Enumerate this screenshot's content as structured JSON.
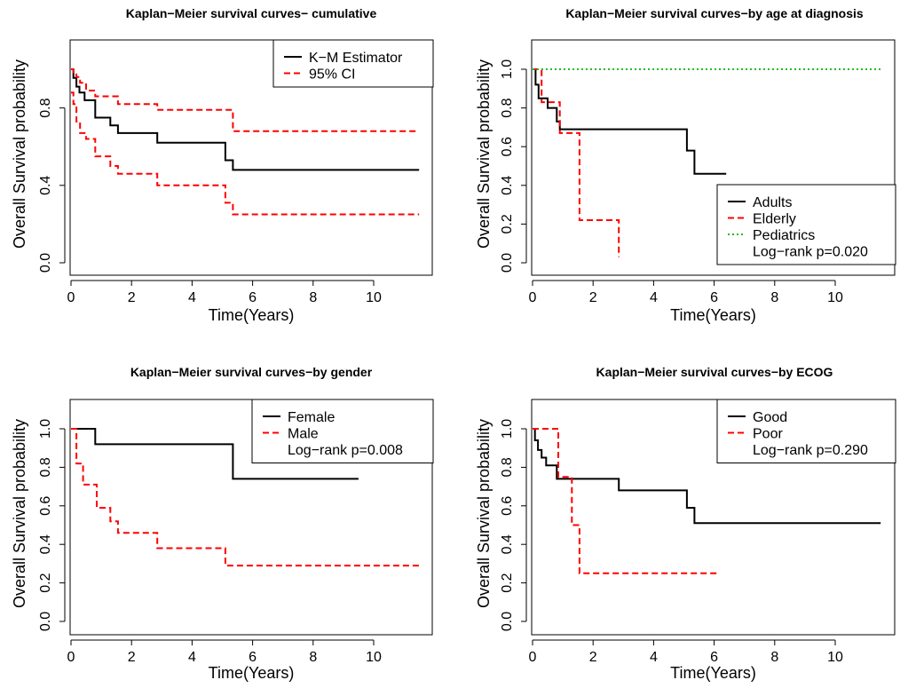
{
  "chart_data": [
    {
      "type": "line",
      "title": "Kaplan−Meier survival curves− cumulative",
      "xlabel": "Time(Years)",
      "ylabel": "Overall Survival probability",
      "xlim": [
        0,
        11.5
      ],
      "ylim": [
        0,
        1
      ],
      "xticks": [
        "0",
        "2",
        "4",
        "6",
        "8",
        "10"
      ],
      "yticks": [
        "0.0",
        "0.4",
        "0.8"
      ],
      "ytick_values": [
        0,
        0.4,
        0.8
      ],
      "legend_position": "top-right",
      "log_rank": "",
      "grid": false,
      "series": [
        {
          "name": "K−M Estimator",
          "color": "#000000",
          "dash": "solid",
          "x": [
            0,
            0.08,
            0.18,
            0.28,
            0.45,
            0.8,
            1.3,
            1.55,
            2.85,
            5.1,
            5.35,
            11.5
          ],
          "y": [
            1.0,
            0.955,
            0.91,
            0.88,
            0.84,
            0.75,
            0.71,
            0.67,
            0.62,
            0.53,
            0.48,
            0.48
          ]
        },
        {
          "name": "95%   CI",
          "color": "#ff0000",
          "dash": "dashed",
          "x": [
            0,
            0.08,
            0.18,
            0.3,
            0.5,
            0.8,
            1.55,
            2.85,
            5.1,
            5.35,
            11.5
          ],
          "y": [
            1.0,
            0.98,
            0.96,
            0.93,
            0.89,
            0.86,
            0.82,
            0.79,
            0.79,
            0.68,
            0.68
          ]
        },
        {
          "name": "",
          "color": "#ff0000",
          "dash": "dashed",
          "x": [
            0,
            0.08,
            0.18,
            0.3,
            0.5,
            0.8,
            1.3,
            1.55,
            2.85,
            5.1,
            5.35,
            11.5
          ],
          "y": [
            0.88,
            0.82,
            0.73,
            0.67,
            0.64,
            0.55,
            0.5,
            0.46,
            0.4,
            0.31,
            0.25,
            0.25
          ]
        }
      ]
    },
    {
      "type": "line",
      "title": "Kaplan−Meier survival curves−by age at diagnosis",
      "xlabel": "Time(Years)",
      "ylabel": "Overall Survival probability",
      "xlim": [
        0,
        11.5
      ],
      "ylim": [
        0,
        1
      ],
      "xticks": [
        "0",
        "2",
        "4",
        "6",
        "8",
        "10"
      ],
      "yticks": [
        "0.0",
        "0.2",
        "0.4",
        "0.6",
        "0.8",
        "1.0"
      ],
      "ytick_values": [
        0,
        0.2,
        0.4,
        0.6,
        0.8,
        1.0
      ],
      "legend_position": "bottom-right",
      "log_rank": "Log−rank p=0.020",
      "grid": false,
      "series": [
        {
          "name": "Adults",
          "color": "#000000",
          "dash": "solid",
          "x": [
            0,
            0.1,
            0.2,
            0.35,
            0.5,
            0.8,
            0.9,
            5.1,
            5.35,
            6.4
          ],
          "y": [
            1.0,
            0.92,
            0.85,
            0.85,
            0.8,
            0.73,
            0.69,
            0.58,
            0.46,
            0.46
          ]
        },
        {
          "name": "Elderly",
          "color": "#ff0000",
          "dash": "dashed",
          "x": [
            0,
            0.3,
            0.8,
            0.9,
            1.3,
            1.55,
            2.85,
            2.85
          ],
          "y": [
            1.0,
            0.83,
            0.83,
            0.67,
            0.67,
            0.22,
            0.22,
            0.03
          ]
        },
        {
          "name": "Pediatrics",
          "color": "#22bb22",
          "dash": "dotted",
          "x": [
            0,
            11.5
          ],
          "y": [
            1.0,
            1.0
          ]
        }
      ]
    },
    {
      "type": "line",
      "title": "Kaplan−Meier survival curves−by gender",
      "xlabel": "Time(Years)",
      "ylabel": "Overall Survival probability",
      "xlim": [
        0,
        11.5
      ],
      "ylim": [
        0,
        1
      ],
      "xticks": [
        "0",
        "2",
        "4",
        "6",
        "8",
        "10"
      ],
      "yticks": [
        "0.0",
        "0.2",
        "0.4",
        "0.6",
        "0.8",
        "1.0"
      ],
      "ytick_values": [
        0,
        0.2,
        0.4,
        0.6,
        0.8,
        1.0
      ],
      "legend_position": "top-right",
      "log_rank": "Log−rank p=0.008",
      "grid": false,
      "series": [
        {
          "name": "Female",
          "color": "#000000",
          "dash": "solid",
          "x": [
            0,
            0.8,
            5.35,
            9.5
          ],
          "y": [
            1.0,
            0.92,
            0.74,
            0.74
          ]
        },
        {
          "name": "Male",
          "color": "#ff0000",
          "dash": "dashed",
          "x": [
            0,
            0.18,
            0.4,
            0.85,
            1.3,
            1.55,
            2.85,
            5.1,
            11.5
          ],
          "y": [
            1.0,
            0.82,
            0.71,
            0.59,
            0.52,
            0.46,
            0.38,
            0.29,
            0.29
          ]
        }
      ]
    },
    {
      "type": "line",
      "title": "Kaplan−Meier survival curves−by ECOG",
      "xlabel": "Time(Years)",
      "ylabel": "Overall Survival probability",
      "xlim": [
        0,
        11.5
      ],
      "ylim": [
        0,
        1
      ],
      "xticks": [
        "0",
        "2",
        "4",
        "6",
        "8",
        "10"
      ],
      "yticks": [
        "0.0",
        "0.2",
        "0.4",
        "0.6",
        "0.8",
        "1.0"
      ],
      "ytick_values": [
        0,
        0.2,
        0.4,
        0.6,
        0.8,
        1.0
      ],
      "legend_position": "top-right",
      "log_rank": "Log−rank p=0.290",
      "grid": false,
      "series": [
        {
          "name": "Good",
          "color": "#000000",
          "dash": "solid",
          "x": [
            0,
            0.08,
            0.18,
            0.3,
            0.45,
            0.8,
            2.85,
            5.1,
            5.35,
            11.5
          ],
          "y": [
            1.0,
            0.94,
            0.89,
            0.85,
            0.81,
            0.74,
            0.68,
            0.59,
            0.51,
            0.51
          ]
        },
        {
          "name": "Poor",
          "color": "#ff0000",
          "dash": "dashed",
          "x": [
            0,
            0.85,
            1.3,
            1.55,
            6.1
          ],
          "y": [
            1.0,
            0.75,
            0.5,
            0.25,
            0.25
          ]
        }
      ]
    }
  ]
}
